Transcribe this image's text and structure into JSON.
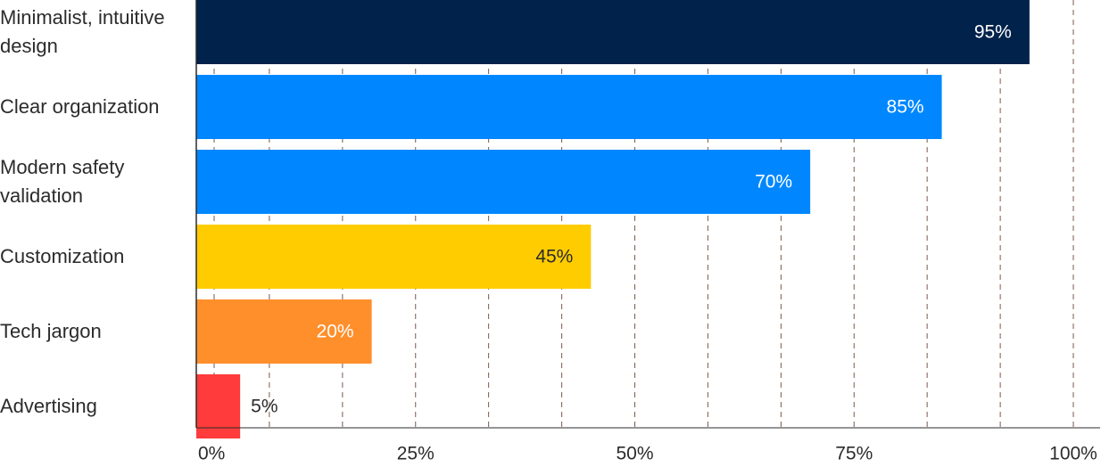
{
  "chart_data": {
    "type": "bar",
    "orientation": "horizontal",
    "categories": [
      "Minimalist, intuitive design",
      "Clear organization",
      "Modern safety validation",
      "Customization",
      "Tech jargon",
      "Advertising"
    ],
    "values": [
      95,
      85,
      70,
      45,
      20,
      5
    ],
    "value_labels": [
      "95%",
      "85%",
      "70%",
      "45%",
      "20%",
      "5%"
    ],
    "colors": [
      "#00224b",
      "#0087ff",
      "#0087ff",
      "#ffcc00",
      "#ff8f2b",
      "#ff3b3b"
    ],
    "xlim": [
      0,
      100
    ],
    "xticks": [
      {
        "value": 0,
        "label": "0%"
      },
      {
        "value": 25,
        "label": "25%"
      },
      {
        "value": 50,
        "label": "50%"
      },
      {
        "value": 75,
        "label": "75%"
      },
      {
        "value": 100,
        "label": "100%"
      }
    ],
    "grid_xticks": [
      0,
      8.33,
      16.67,
      25,
      33.33,
      41.67,
      50,
      58.33,
      66.67,
      75,
      83.33,
      91.67,
      100
    ],
    "grid": true
  }
}
